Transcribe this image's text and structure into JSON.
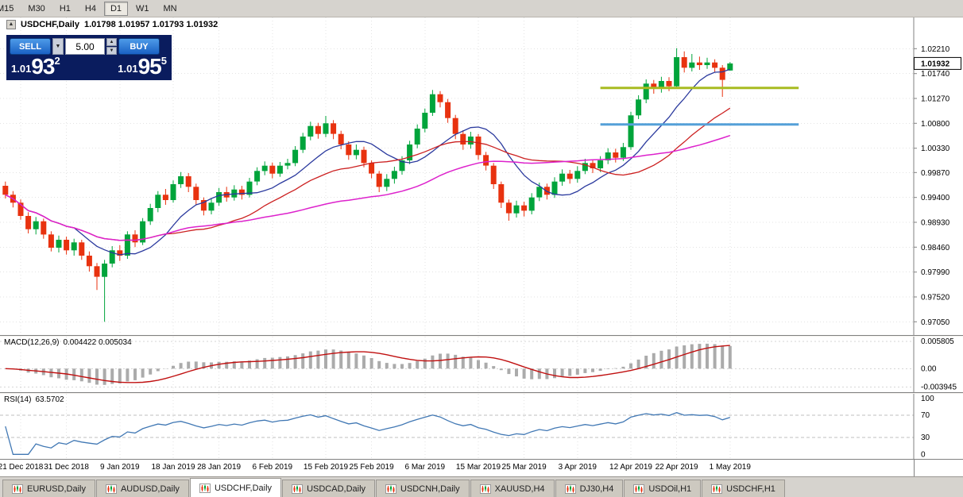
{
  "toolbar": {
    "timeframes": [
      {
        "label": "M15",
        "clipped": true,
        "active": false
      },
      {
        "label": "M30",
        "clipped": false,
        "active": false
      },
      {
        "label": "H1",
        "clipped": false,
        "active": false
      },
      {
        "label": "H4",
        "clipped": false,
        "active": false
      },
      {
        "label": "D1",
        "clipped": false,
        "active": true
      },
      {
        "label": "W1",
        "clipped": false,
        "active": false
      },
      {
        "label": "MN",
        "clipped": false,
        "active": false
      }
    ]
  },
  "chart": {
    "title": {
      "symbol": "USDCHF,Daily",
      "ohlc_text": "1.01798 1.01957 1.01793 1.01932",
      "open": "1.01798",
      "high": "1.01957",
      "low": "1.01793",
      "close": "1.01932",
      "collapse_icon": "collapse-triangle-icon"
    },
    "trade_panel": {
      "sell_label": "SELL",
      "buy_label": "BUY",
      "volume": "5.00",
      "bid_small": "1.01",
      "bid_big": "93",
      "bid_sup": "2",
      "ask_small": "1.01",
      "ask_big": "95",
      "ask_sup": "5"
    },
    "price_axis": {
      "current": "1.01932"
    }
  },
  "indicators": {
    "macd": {
      "title": "MACD(12,26,9)",
      "values_text": "0.004422 0.005034"
    },
    "rsi": {
      "title": "RSI(14)",
      "value": "63.5702"
    }
  },
  "tabs": [
    {
      "label": "EURUSD,Daily",
      "active": false
    },
    {
      "label": "AUDUSD,Daily",
      "active": false
    },
    {
      "label": "USDCHF,Daily",
      "active": true
    },
    {
      "label": "USDCAD,Daily",
      "active": false
    },
    {
      "label": "USDCNH,Daily",
      "active": false
    },
    {
      "label": "XAUUSD,H4",
      "active": false
    },
    {
      "label": "DJ30,H4",
      "active": false
    },
    {
      "label": "USDOil,H1",
      "active": false
    },
    {
      "label": "USDCHF,H1",
      "active": false
    }
  ],
  "colors": {
    "candle_up": "#00A43B",
    "candle_down": "#E8320F",
    "macd_hist": "#ABABAB",
    "macd_signal": "#C01010",
    "rsi_line": "#4178B4",
    "grid": "#E3E3E3",
    "chrome_bg": "#D6D3CE",
    "trade_navy": "#0A1C5E",
    "trade_button_blue": "#1E74D8"
  },
  "chart_data": {
    "type": "candlestick",
    "symbol": "USDCHF",
    "timeframe": "Daily",
    "title": "USDCHF Daily with MA overlays, MACD(12,26,9) and RSI(14)",
    "price_range": {
      "top": 1.028,
      "bottom": 0.968
    },
    "y_ticks": [
      "1.02210",
      "1.01740",
      "1.01270",
      "1.00800",
      "1.00330",
      "0.99870",
      "0.99400",
      "0.98930",
      "0.98460",
      "0.97990",
      "0.97520",
      "0.97050"
    ],
    "x_ticks": [
      {
        "label": "21 Dec 2018",
        "bar": 2
      },
      {
        "label": "31 Dec 2018",
        "bar": 8
      },
      {
        "label": "9 Jan 2019",
        "bar": 15
      },
      {
        "label": "18 Jan 2019",
        "bar": 22
      },
      {
        "label": "28 Jan 2019",
        "bar": 28
      },
      {
        "label": "6 Feb 2019",
        "bar": 35
      },
      {
        "label": "15 Feb 2019",
        "bar": 42
      },
      {
        "label": "25 Feb 2019",
        "bar": 48
      },
      {
        "label": "6 Mar 2019",
        "bar": 55
      },
      {
        "label": "15 Mar 2019",
        "bar": 62
      },
      {
        "label": "25 Mar 2019",
        "bar": 68
      },
      {
        "label": "3 Apr 2019",
        "bar": 75
      },
      {
        "label": "12 Apr 2019",
        "bar": 82
      },
      {
        "label": "22 Apr 2019",
        "bar": 88
      },
      {
        "label": "1 May 2019",
        "bar": 95
      }
    ],
    "candles": [
      [
        0.9962,
        0.997,
        0.9938,
        0.9945
      ],
      [
        0.9945,
        0.9952,
        0.9921,
        0.993
      ],
      [
        0.993,
        0.9936,
        0.9898,
        0.9905
      ],
      [
        0.9905,
        0.9912,
        0.9872,
        0.988
      ],
      [
        0.988,
        0.9903,
        0.987,
        0.9895
      ],
      [
        0.9895,
        0.99,
        0.9862,
        0.987
      ],
      [
        0.987,
        0.9876,
        0.9838,
        0.9845
      ],
      [
        0.9845,
        0.9868,
        0.9836,
        0.986
      ],
      [
        0.986,
        0.9866,
        0.9832,
        0.984
      ],
      [
        0.984,
        0.9862,
        0.983,
        0.9855
      ],
      [
        0.9855,
        0.986,
        0.9822,
        0.983
      ],
      [
        0.983,
        0.9838,
        0.98,
        0.981
      ],
      [
        0.981,
        0.9816,
        0.9765,
        0.979
      ],
      [
        0.979,
        0.9822,
        0.9705,
        0.9815
      ],
      [
        0.9815,
        0.9848,
        0.9808,
        0.984
      ],
      [
        0.984,
        0.985,
        0.982,
        0.983
      ],
      [
        0.983,
        0.9876,
        0.9824,
        0.987
      ],
      [
        0.987,
        0.9878,
        0.9846,
        0.9855
      ],
      [
        0.9855,
        0.9901,
        0.985,
        0.9895
      ],
      [
        0.9895,
        0.9928,
        0.9888,
        0.992
      ],
      [
        0.992,
        0.9952,
        0.9912,
        0.9945
      ],
      [
        0.9945,
        0.9956,
        0.9926,
        0.9935
      ],
      [
        0.9935,
        0.9972,
        0.993,
        0.9965
      ],
      [
        0.9965,
        0.9988,
        0.9958,
        0.998
      ],
      [
        0.998,
        0.9986,
        0.995,
        0.996
      ],
      [
        0.996,
        0.9966,
        0.9926,
        0.9935
      ],
      [
        0.9935,
        0.994,
        0.9906,
        0.9915
      ],
      [
        0.9915,
        0.9938,
        0.9908,
        0.993
      ],
      [
        0.993,
        0.9958,
        0.9924,
        0.995
      ],
      [
        0.995,
        0.996,
        0.9932,
        0.994
      ],
      [
        0.994,
        0.9963,
        0.9934,
        0.9955
      ],
      [
        0.9955,
        0.9962,
        0.9936,
        0.9945
      ],
      [
        0.9945,
        0.9977,
        0.994,
        0.997
      ],
      [
        0.997,
        0.9997,
        0.9963,
        0.999
      ],
      [
        0.999,
        1.0008,
        0.9982,
        1.0
      ],
      [
        1.0,
        1.0006,
        0.9976,
        0.9985
      ],
      [
        0.9985,
        1.0007,
        0.9979,
        1.0
      ],
      [
        1.0,
        1.0013,
        0.9993,
        1.0005
      ],
      [
        1.0005,
        1.0037,
        0.9999,
        1.003
      ],
      [
        1.003,
        1.0062,
        1.0024,
        1.0055
      ],
      [
        1.0055,
        1.0083,
        1.0048,
        1.0075
      ],
      [
        1.0075,
        1.0081,
        1.0051,
        1.006
      ],
      [
        1.006,
        1.0094,
        1.0054,
        1.008
      ],
      [
        1.008,
        1.0086,
        1.005,
        1.006
      ],
      [
        1.006,
        1.0066,
        1.0031,
        1.004
      ],
      [
        1.004,
        1.0046,
        1.0011,
        1.002
      ],
      [
        1.002,
        1.004,
        1.0012,
        1.003
      ],
      [
        1.003,
        1.0036,
        0.9997,
        1.0005
      ],
      [
        1.0005,
        1.001,
        0.9976,
        0.9985
      ],
      [
        0.9985,
        0.999,
        0.995,
        0.996
      ],
      [
        0.996,
        0.9984,
        0.9952,
        0.9975
      ],
      [
        0.9975,
        0.9998,
        0.9966,
        0.999
      ],
      [
        0.999,
        1.0018,
        0.9983,
        1.001
      ],
      [
        1.001,
        1.0047,
        1.0003,
        1.004
      ],
      [
        1.004,
        1.0078,
        1.0033,
        1.007
      ],
      [
        1.007,
        1.0108,
        1.0063,
        1.01
      ],
      [
        1.01,
        1.0143,
        1.0094,
        1.0135
      ],
      [
        1.0135,
        1.0141,
        1.011,
        1.012
      ],
      [
        1.012,
        1.0126,
        1.0081,
        1.009
      ],
      [
        1.009,
        1.0096,
        1.005,
        1.006
      ],
      [
        1.006,
        1.0067,
        1.003,
        1.004
      ],
      [
        1.004,
        1.0064,
        1.0032,
        1.0055
      ],
      [
        1.0055,
        1.006,
        1.0011,
        1.002
      ],
      [
        1.002,
        1.0026,
        0.9991,
        1.0
      ],
      [
        1.0,
        1.0005,
        0.9956,
        0.9965
      ],
      [
        0.9965,
        0.997,
        0.992,
        0.993
      ],
      [
        0.993,
        0.9936,
        0.9896,
        0.991
      ],
      [
        0.991,
        0.9934,
        0.9902,
        0.9925
      ],
      [
        0.9925,
        0.9932,
        0.9904,
        0.9915
      ],
      [
        0.9915,
        0.9948,
        0.9908,
        0.994
      ],
      [
        0.994,
        0.9968,
        0.9933,
        0.996
      ],
      [
        0.996,
        0.9966,
        0.9936,
        0.9945
      ],
      [
        0.9945,
        0.9978,
        0.9939,
        0.997
      ],
      [
        0.997,
        0.9993,
        0.9962,
        0.9985
      ],
      [
        0.9985,
        0.9992,
        0.9966,
        0.9975
      ],
      [
        0.9975,
        0.9999,
        0.9968,
        0.999
      ],
      [
        0.999,
        1.0013,
        0.9984,
        1.0005
      ],
      [
        1.0005,
        1.0012,
        0.9986,
        0.9995
      ],
      [
        0.9995,
        1.0018,
        0.9988,
        1.001
      ],
      [
        1.001,
        1.0033,
        1.0003,
        1.0025
      ],
      [
        1.0025,
        1.0032,
        1.0006,
        1.0015
      ],
      [
        1.0015,
        1.0043,
        1.0009,
        1.0035
      ],
      [
        1.0035,
        1.0102,
        1.003,
        1.0095
      ],
      [
        1.0095,
        1.0133,
        1.0088,
        1.0125
      ],
      [
        1.0125,
        1.0163,
        1.0118,
        1.0155
      ],
      [
        1.0155,
        1.0162,
        1.0136,
        1.0145
      ],
      [
        1.0145,
        1.0168,
        1.0138,
        1.016
      ],
      [
        1.016,
        1.0167,
        1.0141,
        1.015
      ],
      [
        1.015,
        1.0222,
        1.0145,
        1.0205
      ],
      [
        1.0205,
        1.0216,
        1.0176,
        1.0185
      ],
      [
        1.0185,
        1.0211,
        1.0178,
        1.0195
      ],
      [
        1.0195,
        1.0206,
        1.0181,
        1.019
      ],
      [
        1.019,
        1.0204,
        1.0183,
        1.0195
      ],
      [
        1.0195,
        1.0201,
        1.0176,
        1.0185
      ],
      [
        1.0185,
        1.019,
        1.013,
        1.0162
      ],
      [
        1.01798,
        1.01957,
        1.01793,
        1.01932
      ]
    ],
    "ma_overlays": [
      {
        "type": "sma",
        "period": 10,
        "color": "#2B3A9E",
        "width": 1.3,
        "name": "ma-fast-blue"
      },
      {
        "type": "sma",
        "period": 22,
        "color": "#CC2020",
        "width": 1.3,
        "name": "ma-mid-red"
      },
      {
        "type": "sma",
        "period": 45,
        "color": "#DD22CC",
        "width": 1.5,
        "name": "ma-slow-magenta"
      }
    ],
    "hlines": [
      {
        "name": "resistance-line-olive",
        "price": 1.0147,
        "color": "#A8BB21",
        "width": 3,
        "bar_start": 78,
        "bar_end": 104
      },
      {
        "name": "support-line-blue",
        "price": 1.0078,
        "color": "#55A0D8",
        "width": 3,
        "bar_start": 78,
        "bar_end": 104
      }
    ],
    "macd": {
      "fast": 12,
      "slow": 26,
      "signal": 9,
      "range": [
        -0.005,
        0.0068
      ],
      "ticks": [
        "0.005805",
        "0.00",
        "-0.003945"
      ]
    },
    "rsi": {
      "period": 14,
      "range": [
        -8,
        108
      ],
      "ticks": [
        "100",
        "70",
        "30",
        "0"
      ],
      "level_lines": [
        70,
        30
      ]
    }
  }
}
